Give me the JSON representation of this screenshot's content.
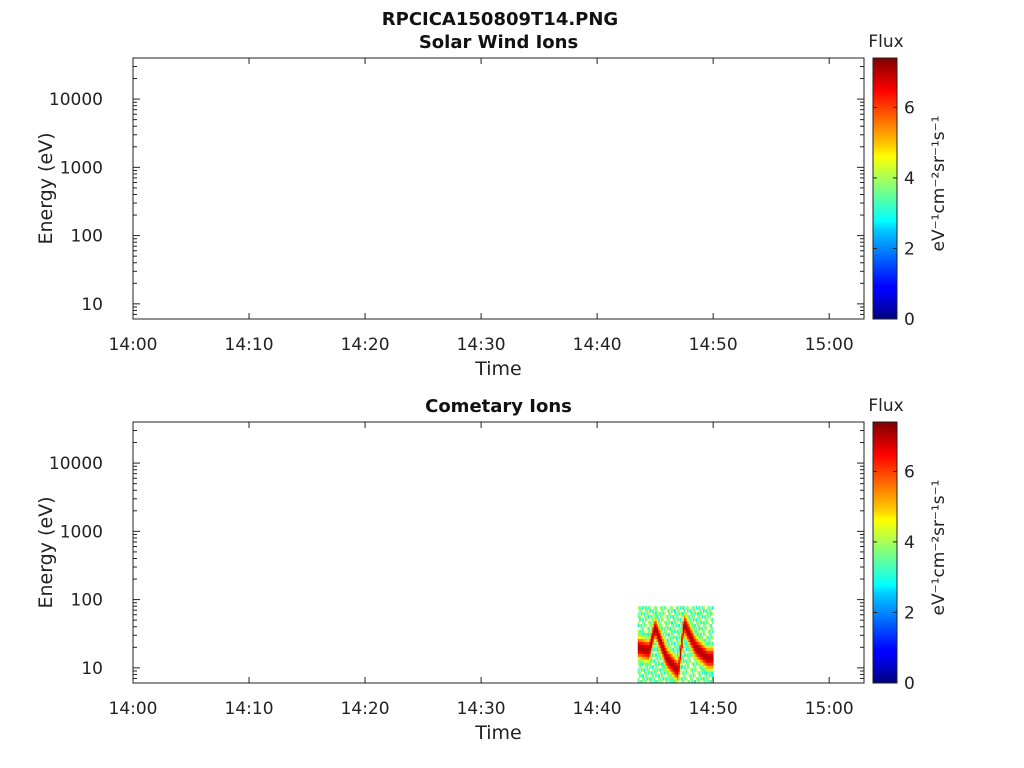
{
  "figure_title": "RPCICA150809T14.PNG",
  "chart_data": [
    {
      "type": "heatmap",
      "title": "Solar Wind Ions",
      "xlabel": "Time",
      "ylabel": "Energy (eV)",
      "x_ticks": [
        "14:00",
        "14:10",
        "14:20",
        "14:30",
        "14:40",
        "14:50",
        "15:00"
      ],
      "y_ticks": [
        "10",
        "100",
        "1000",
        "10000"
      ],
      "y_scale": "log",
      "x_range": [
        "14:00",
        "15:03"
      ],
      "y_range": [
        6,
        40000
      ],
      "colorbar": {
        "title": "Flux",
        "label": "eV⁻¹cm⁻²sr⁻¹s⁻¹",
        "ticks": [
          "0",
          "2",
          "4",
          "6"
        ],
        "range": [
          0,
          7.4
        ],
        "colormap": "jet"
      },
      "cells": []
    },
    {
      "type": "heatmap",
      "title": "Cometary Ions",
      "xlabel": "Time",
      "ylabel": "Energy (eV)",
      "x_ticks": [
        "14:00",
        "14:10",
        "14:20",
        "14:30",
        "14:40",
        "14:50",
        "15:00"
      ],
      "y_ticks": [
        "10",
        "100",
        "1000",
        "10000"
      ],
      "y_scale": "log",
      "x_range": [
        "14:00",
        "15:03"
      ],
      "y_range": [
        6,
        40000
      ],
      "colorbar": {
        "title": "Flux",
        "label": "eV⁻¹cm⁻²sr⁻¹s⁻¹",
        "ticks": [
          "0",
          "2",
          "4",
          "6"
        ],
        "range": [
          0,
          7.4
        ],
        "colormap": "jet"
      },
      "data_time_range": [
        "14:43:30",
        "14:50:00"
      ],
      "data_energy_range": [
        6,
        80
      ],
      "peak_flux_track": [
        {
          "time": "14:43:30",
          "energy_eV": 20
        },
        {
          "time": "14:44:30",
          "energy_eV": 18
        },
        {
          "time": "14:45:00",
          "energy_eV": 40
        },
        {
          "time": "14:46:00",
          "energy_eV": 14
        },
        {
          "time": "14:47:00",
          "energy_eV": 9
        },
        {
          "time": "14:47:30",
          "energy_eV": 45
        },
        {
          "time": "14:48:30",
          "energy_eV": 20
        },
        {
          "time": "14:49:30",
          "energy_eV": 14
        }
      ]
    }
  ]
}
